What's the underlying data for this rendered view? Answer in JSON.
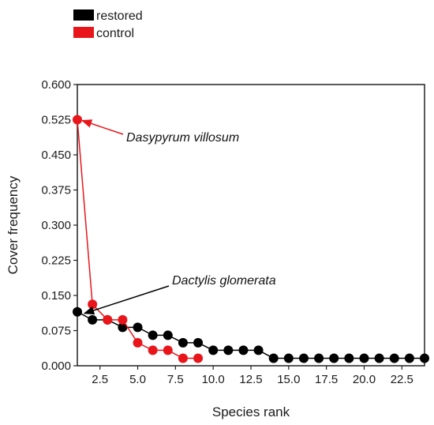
{
  "chart_data": {
    "type": "line",
    "xlabel": "Species rank",
    "ylabel": "Cover frequency",
    "xlim": [
      1,
      24
    ],
    "ylim": [
      0,
      0.6
    ],
    "xticks": [
      2.5,
      5.0,
      7.5,
      10.0,
      12.5,
      15.0,
      17.5,
      20.0,
      22.5
    ],
    "xtick_labels": [
      "2.5",
      "5.0",
      "7.5",
      "10.0",
      "12.5",
      "15.0",
      "17.5",
      "20.0",
      "22.5"
    ],
    "yticks": [
      0,
      0.075,
      0.15,
      0.225,
      0.3,
      0.375,
      0.45,
      0.525,
      0.6
    ],
    "ytick_labels": [
      "0.000",
      "0.075",
      "0.150",
      "0.225",
      "0.300",
      "0.375",
      "0.450",
      "0.525",
      "0.600"
    ],
    "grid": false,
    "legend_position": "top-left, outside plot",
    "series": [
      {
        "name": "restored",
        "color": "#000000",
        "x": [
          1,
          2,
          3,
          4,
          5,
          6,
          7,
          8,
          9,
          10,
          11,
          12,
          13,
          14,
          15,
          16,
          17,
          18,
          19,
          20,
          21,
          22,
          23,
          24
        ],
        "y": [
          0.115,
          0.098,
          0.098,
          0.082,
          0.082,
          0.065,
          0.065,
          0.049,
          0.049,
          0.033,
          0.033,
          0.033,
          0.033,
          0.016,
          0.016,
          0.016,
          0.016,
          0.016,
          0.016,
          0.016,
          0.016,
          0.016,
          0.016,
          0.016
        ]
      },
      {
        "name": "control",
        "color": "#e8161b",
        "x": [
          1,
          2,
          3,
          4,
          5,
          6,
          7,
          8,
          9
        ],
        "y": [
          0.525,
          0.131,
          0.098,
          0.098,
          0.049,
          0.033,
          0.033,
          0.016,
          0.016
        ]
      }
    ],
    "annotations": [
      {
        "text": "Dasypyrum villosum",
        "points_to": {
          "x": 1,
          "y": 0.525
        }
      },
      {
        "text": "Dactylis glomerata",
        "points_to": {
          "x": 1,
          "y": 0.115
        }
      }
    ]
  }
}
